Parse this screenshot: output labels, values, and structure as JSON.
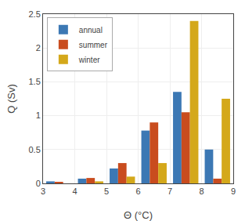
{
  "chart_data": {
    "type": "bar",
    "x": [
      3.5,
      4.5,
      5.5,
      6.5,
      7.5,
      8.5
    ],
    "series": [
      {
        "name": "annual",
        "color": "#3c78b4",
        "values": [
          0.03,
          0.07,
          0.22,
          0.78,
          1.35,
          0.5
        ]
      },
      {
        "name": "summer",
        "color": "#c94c1e",
        "values": [
          0.02,
          0.08,
          0.3,
          0.9,
          1.05,
          0.07
        ]
      },
      {
        "name": "winter",
        "color": "#d4a81a",
        "values": [
          0.0,
          0.03,
          0.1,
          0.3,
          2.4,
          1.25
        ]
      }
    ],
    "xlabel": "Θ (°C)",
    "ylabel": "Q (Sv)",
    "xlim": [
      3,
      9
    ],
    "ylim": [
      0,
      2.5
    ],
    "xticks": [
      3,
      4,
      5,
      6,
      7,
      8,
      9
    ],
    "yticks": [
      0,
      0.5,
      1.0,
      1.5,
      2.0,
      2.5
    ],
    "grid": true,
    "legend": "upper left"
  }
}
